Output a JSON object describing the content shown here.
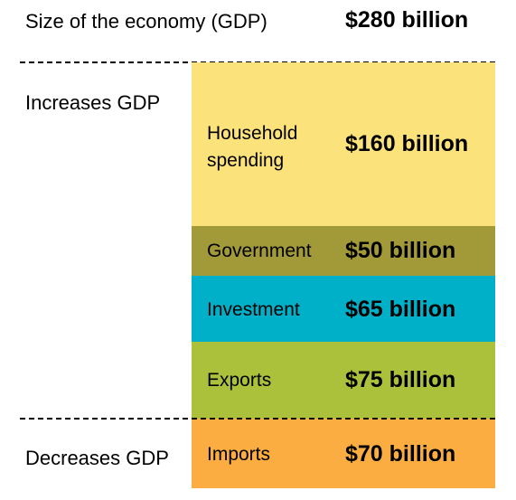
{
  "header": {
    "title": "Size of the economy (GDP)",
    "value": "$280 billion"
  },
  "sections": {
    "increases": "Increases GDP",
    "decreases": "Decreases GDP"
  },
  "components": {
    "household": {
      "label": "Household spending",
      "value": "$160 billion",
      "color": "#fce27a"
    },
    "government": {
      "label": "Government",
      "value": "$50 billion",
      "color": "#a29a39"
    },
    "investment": {
      "label": "Investment",
      "value": "$65 billion",
      "color": "#00b0c8"
    },
    "exports": {
      "label": "Exports",
      "value": "$75 billion",
      "color": "#abc13b"
    },
    "imports": {
      "label": "Imports",
      "value": "$70 billion",
      "color": "#fbad41"
    }
  }
}
